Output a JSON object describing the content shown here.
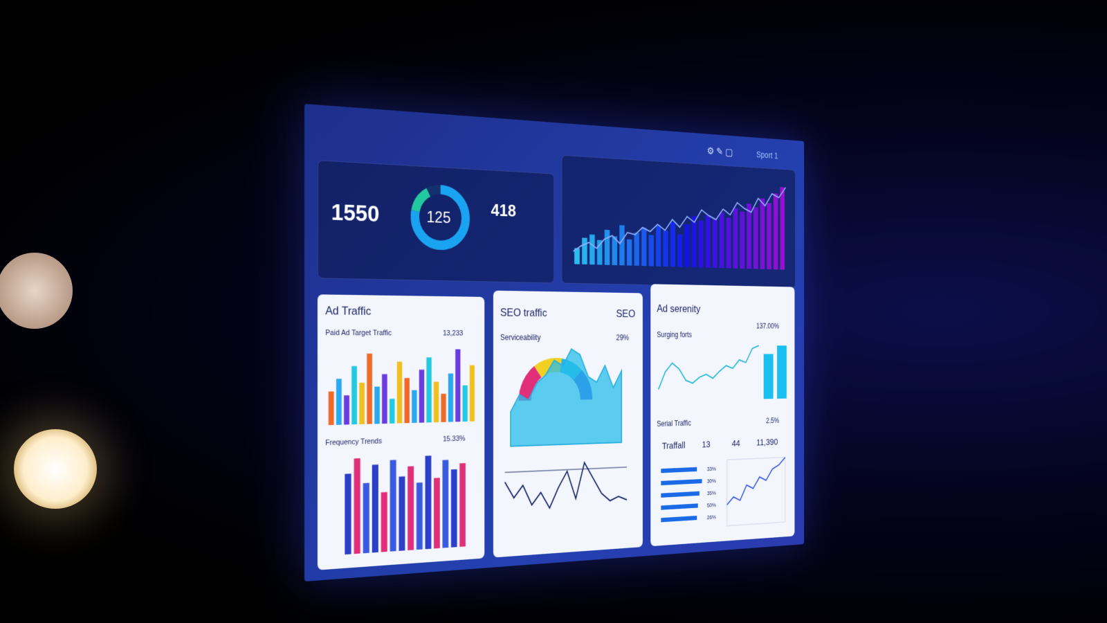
{
  "header": {
    "user": "Sport 1"
  },
  "kpis": {
    "total": "1550",
    "donut_label": "125",
    "count": "418",
    "donut": [
      78,
      14,
      8
    ],
    "donut_colors": [
      "#1aa3f0",
      "#22c9a0",
      "#14306e"
    ]
  },
  "trend": {
    "bars": [
      18,
      30,
      34,
      28,
      40,
      33,
      46,
      30,
      38,
      44,
      36,
      48,
      42,
      52,
      38,
      50,
      60,
      55,
      62,
      58,
      66,
      60,
      72,
      68,
      78,
      74,
      85,
      80,
      92,
      100
    ],
    "line": [
      20,
      26,
      30,
      24,
      34,
      38,
      30,
      42,
      40,
      48,
      44,
      52,
      46,
      58,
      50,
      62,
      56,
      70,
      64,
      60,
      72,
      66,
      80,
      74,
      70,
      86,
      78,
      92,
      88,
      100
    ]
  },
  "ad_traffic": {
    "title": "Ad Traffic",
    "subtitle": "Paid Ad Target Traffic",
    "stat": "13,233",
    "bars": [
      40,
      55,
      35,
      70,
      50,
      85,
      45,
      60,
      30,
      75,
      55,
      40,
      65,
      80,
      50,
      35,
      60,
      90,
      45,
      70
    ],
    "colors": [
      "#f06a2a",
      "#2aa8f0",
      "#6a3be0",
      "#22c9e0",
      "#f0c020"
    ],
    "section": "Frequency Trends",
    "section_stat": "15.33%",
    "bars2": [
      80,
      95,
      70,
      88,
      60,
      92,
      75,
      85,
      68,
      95,
      72,
      90,
      80,
      86
    ],
    "colors2": [
      "#2b3fc8",
      "#e0307a",
      "#3a5ae0"
    ]
  },
  "seo": {
    "title": "SEO traffic",
    "tag": "SEO",
    "subtitle": "Serviceability",
    "stat": "29%",
    "donut": [
      30,
      25,
      20,
      25
    ],
    "donut_colors": [
      "#e0307a",
      "#f0d020",
      "#22b8e8",
      "#3a4ae0"
    ],
    "area": [
      30,
      45,
      40,
      55,
      62,
      75,
      70,
      85,
      80,
      60,
      55,
      70,
      50,
      65
    ],
    "line": [
      60,
      40,
      55,
      30,
      45,
      25,
      50,
      70,
      35,
      80,
      60,
      40,
      30,
      35,
      30
    ]
  },
  "ad_serenity": {
    "title": "Ad serenity",
    "subtitle": "Surging forts",
    "stat": "137.00%",
    "line": [
      20,
      50,
      65,
      55,
      35,
      30,
      40,
      45,
      38,
      50,
      60,
      55,
      70,
      65,
      90,
      95
    ],
    "bars": [
      80,
      95
    ],
    "section": "Serial Traffic",
    "section_stat": "2.5%",
    "table": [
      "Traffall",
      "13",
      "44",
      "11,390"
    ],
    "hbars": [
      70,
      80,
      75,
      72,
      70
    ],
    "hbar_labels": [
      "33%",
      "30%",
      "35%",
      "50%",
      "26%"
    ],
    "mini_line": [
      20,
      30,
      25,
      45,
      40,
      55,
      50,
      65,
      70,
      80
    ]
  }
}
